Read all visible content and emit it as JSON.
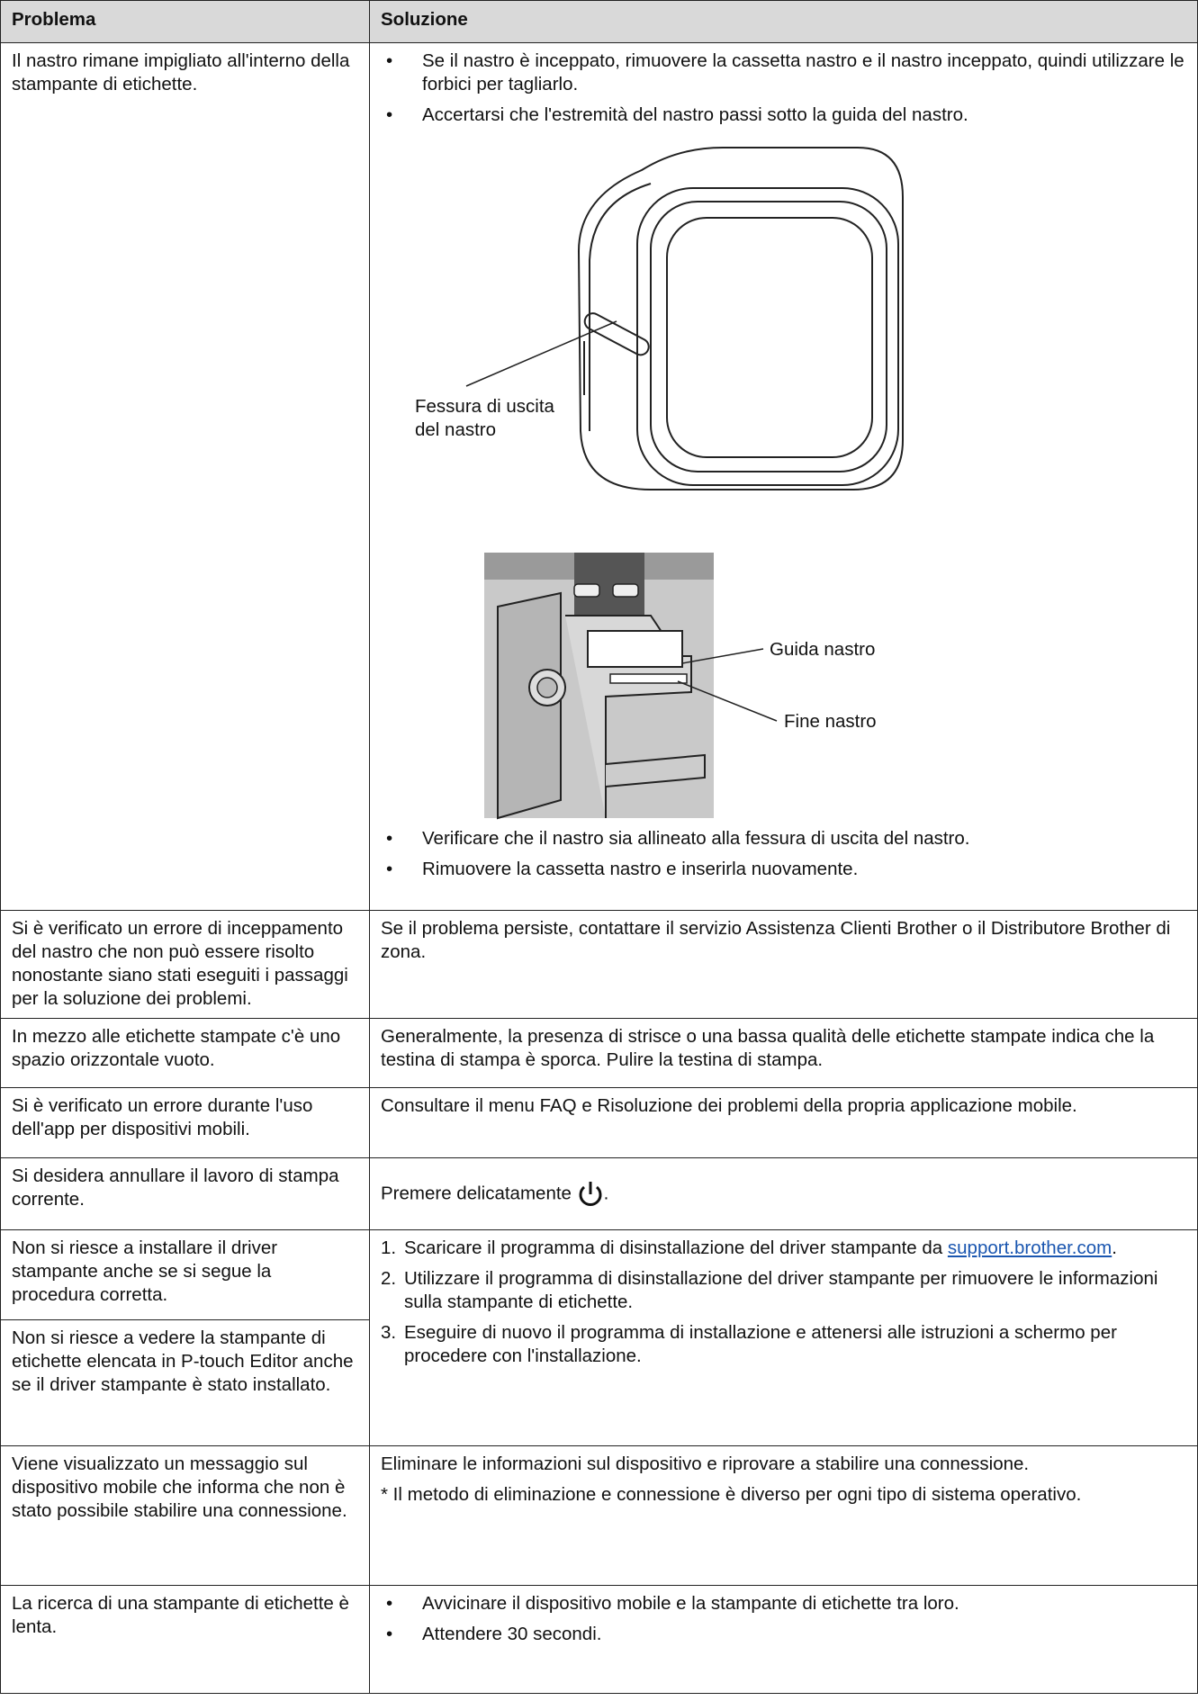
{
  "table": {
    "headers": [
      "Problema",
      "Soluzione"
    ],
    "rows": [
      {
        "problem": "Il nastro rimane impigliato all'interno della stampante di etichette.",
        "bullets": [
          "Se il nastro è inceppato, rimuovere la cassetta nastro e il nastro inceppato, quindi utilizzare le forbici per tagliarlo.",
          "Accertarsi che l'estremità del nastro passi sotto la guida del nastro."
        ],
        "figure1_label": "Fessura di uscita del nastro",
        "figure2_labels": [
          "Guida nastro",
          "Fine nastro"
        ],
        "bullets_after": [
          "Verificare che il nastro sia allineato alla fessura di uscita del nastro.",
          "Rimuovere la cassetta nastro e inserirla nuovamente."
        ]
      },
      {
        "problem": "Si è verificato un errore di inceppamento del nastro che non può essere risolto nonostante siano stati eseguiti i passaggi per la soluzione dei problemi.",
        "solution": "Se il problema persiste, contattare il servizio Assistenza Clienti Brother o il Distributore Brother di zona."
      },
      {
        "problem": "In mezzo alle etichette stampate c'è uno spazio orizzontale vuoto.",
        "solution": "Generalmente, la presenza di strisce o una bassa qualità delle etichette stampate indica che la testina di stampa è sporca. Pulire la testina di stampa."
      },
      {
        "problem": "Si è verificato un errore durante l'uso dell'app per dispositivi mobili.",
        "solution": "Consultare il menu FAQ e Risoluzione dei problemi della propria applicazione mobile."
      },
      {
        "problem": "Si desidera annullare il lavoro di stampa corrente.",
        "solution": "Premere delicatamente",
        "solution_end": "."
      },
      {
        "problems": [
          "Non si riesce a installare il driver stampante anche se si segue la procedura corretta.",
          "Non si riesce a vedere la stampante di etichette elencata in P-touch Editor anche se il driver stampante è stato installato."
        ],
        "steps": [
          {
            "number": "1.",
            "text": "Scaricare il programma di disinstallazione del driver stampante da",
            "link": "support.brother.com",
            "end": "."
          },
          {
            "number": "2.",
            "text": "Utilizzare il programma di disinstallazione del driver stampante per rimuovere le informazioni sulla stampante di etichette."
          },
          {
            "number": "3.",
            "text": "Eseguire di nuovo il programma di installazione e attenersi alle istruzioni a schermo per procedere con l'installazione."
          }
        ]
      },
      {
        "problem": "Viene visualizzato un messaggio sul dispositivo mobile che informa che non è stato possibile stabilire una connessione.",
        "solution": "Eliminare le informazioni sul dispositivo e riprovare a stabilire una connessione.",
        "note": "* Il metodo di eliminazione e connessione è diverso per ogni tipo di sistema operativo."
      },
      {
        "problem": "La ricerca di una stampante di etichette è lenta.",
        "bullets": [
          "Avvicinare il dispositivo mobile e la stampante di etichette tra loro.",
          "Attendere 30 secondi."
        ]
      }
    ]
  }
}
